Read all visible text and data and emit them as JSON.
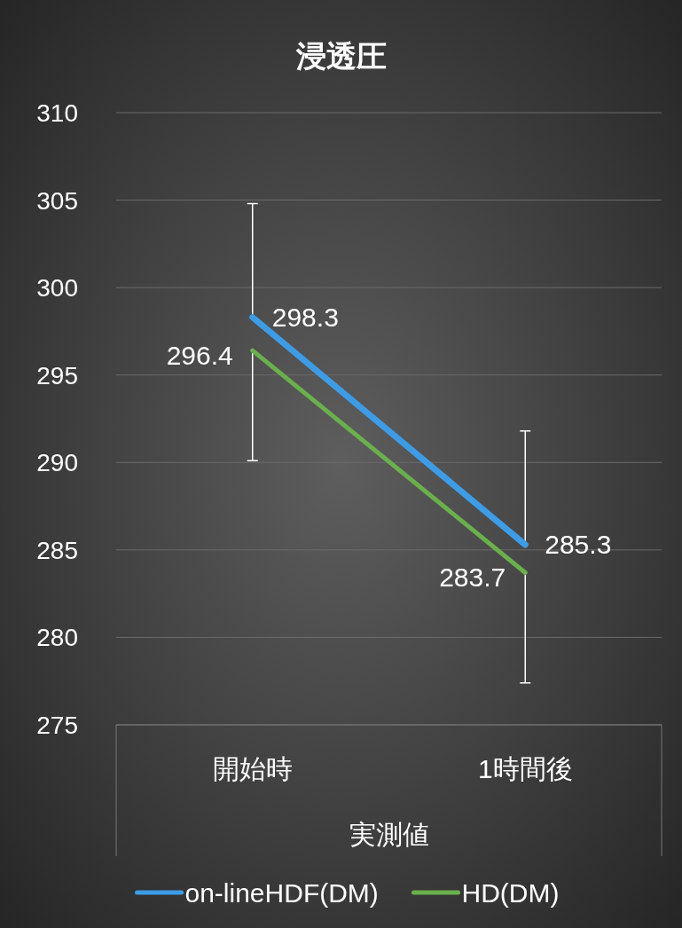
{
  "chart_data": {
    "type": "line",
    "title": "浸透圧",
    "xlabel": "実測値",
    "categories": [
      "開始時",
      "1時間後"
    ],
    "series": [
      {
        "name": "on-lineHDF(DM)",
        "color": "#3d9ce6",
        "values": [
          298.3,
          285.3
        ],
        "errors": [
          [
            298.3,
            304.8
          ],
          [
            285.3,
            291.8
          ]
        ]
      },
      {
        "name": "HD(DM)",
        "color": "#6ab04c",
        "values": [
          296.4,
          283.7
        ],
        "errors": [
          [
            290.1,
            296.4
          ],
          [
            277.4,
            283.7
          ]
        ]
      }
    ],
    "ylim": [
      275,
      310
    ],
    "yticks": [
      275,
      280,
      285,
      290,
      295,
      300,
      305,
      310
    ],
    "grid": "y",
    "legend": "bottom",
    "data_labels": true
  }
}
